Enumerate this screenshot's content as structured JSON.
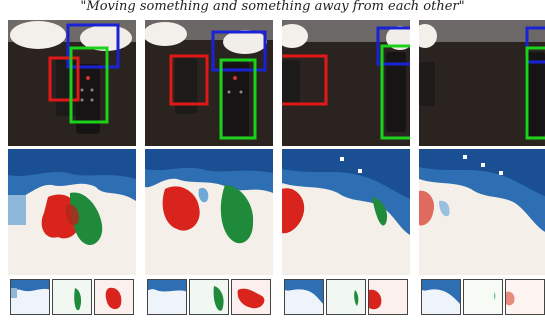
{
  "caption": "\"Moving something and something away from each other\"",
  "box_colors": {
    "blue": "#1a22d6",
    "red": "#e01818",
    "green": "#1ad21a"
  },
  "heatmap_colors": {
    "background": "#f4efe8",
    "blue": "#1f5fa8",
    "red": "#d8241c",
    "green": "#1e8a3a"
  },
  "columns": [
    {
      "name": "frame-1"
    },
    {
      "name": "frame-2"
    },
    {
      "name": "frame-3"
    },
    {
      "name": "frame-4"
    }
  ]
}
